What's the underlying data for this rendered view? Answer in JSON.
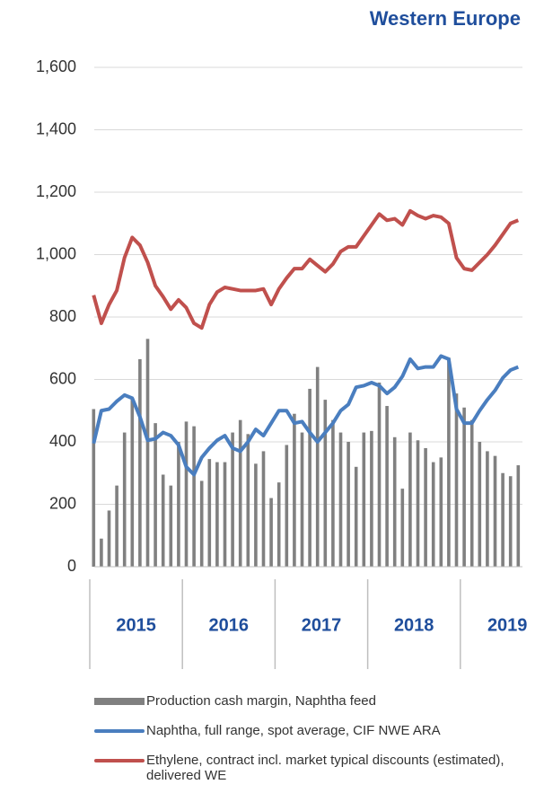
{
  "chart_data": {
    "type": "bar_line",
    "title": "Western Europe",
    "categories": [
      null,
      null,
      null,
      null,
      null,
      null,
      null,
      null,
      null,
      null,
      null,
      null,
      null,
      null,
      null,
      null,
      null,
      null,
      null,
      null,
      null,
      null,
      null,
      null,
      null,
      null,
      null,
      null,
      null,
      null,
      null,
      null,
      null,
      null,
      null,
      null,
      null,
      null,
      null,
      null,
      null,
      null,
      null,
      null,
      null,
      null,
      null,
      null,
      null,
      null,
      null,
      null,
      null,
      null,
      null,
      null
    ],
    "year_labels": [
      "2015",
      "2016",
      "2017",
      "2018",
      "2019"
    ],
    "series": [
      {
        "name": "Production cash margin, Naphtha feed",
        "type": "bar",
        "color": "#808080",
        "values": [
          505,
          90,
          180,
          260,
          430,
          540,
          665,
          730,
          460,
          295,
          260,
          400,
          465,
          450,
          275,
          345,
          335,
          335,
          430,
          470,
          425,
          330,
          370,
          220,
          270,
          390,
          490,
          430,
          570,
          640,
          535,
          470,
          430,
          400,
          320,
          430,
          435,
          590,
          515,
          415,
          250,
          430,
          405,
          380,
          335,
          350,
          670,
          555,
          510,
          470,
          400,
          370,
          355,
          300,
          290,
          325
        ]
      },
      {
        "name": "Naphtha, full range, spot average, CIF NWE ARA",
        "type": "line",
        "color": "#4a7ebf",
        "values": [
          395,
          500,
          505,
          530,
          550,
          540,
          480,
          405,
          410,
          430,
          420,
          390,
          320,
          295,
          350,
          380,
          405,
          420,
          380,
          370,
          400,
          440,
          420,
          460,
          500,
          500,
          460,
          465,
          430,
          400,
          430,
          460,
          500,
          520,
          575,
          580,
          590,
          580,
          555,
          575,
          610,
          665,
          635,
          640,
          640,
          675,
          665,
          505,
          460,
          460,
          500,
          535,
          565,
          605,
          630,
          640
        ]
      },
      {
        "name": "Ethylene, contract incl. market typical discounts (estimated), delivered WE",
        "type": "line",
        "color": "#c0504d",
        "values": [
          870,
          780,
          840,
          885,
          990,
          1055,
          1030,
          975,
          900,
          865,
          825,
          855,
          830,
          780,
          765,
          840,
          880,
          895,
          890,
          885,
          885,
          885,
          890,
          840,
          890,
          925,
          955,
          955,
          985,
          965,
          945,
          970,
          1010,
          1025,
          1025,
          1060,
          1095,
          1130,
          1110,
          1115,
          1095,
          1140,
          1125,
          1115,
          1125,
          1120,
          1100,
          990,
          955,
          950,
          975,
          1000,
          1030,
          1065,
          1100,
          1110
        ]
      }
    ],
    "ylim": [
      0,
      1600
    ],
    "yticks": [
      0,
      200,
      400,
      600,
      800,
      {
        "value": 1000,
        "label": "1,000"
      },
      {
        "value": 1200,
        "label": "1,200"
      },
      {
        "value": 1400,
        "label": "1,400"
      },
      {
        "value": 1600,
        "label": "1,600"
      }
    ],
    "grid": true
  }
}
